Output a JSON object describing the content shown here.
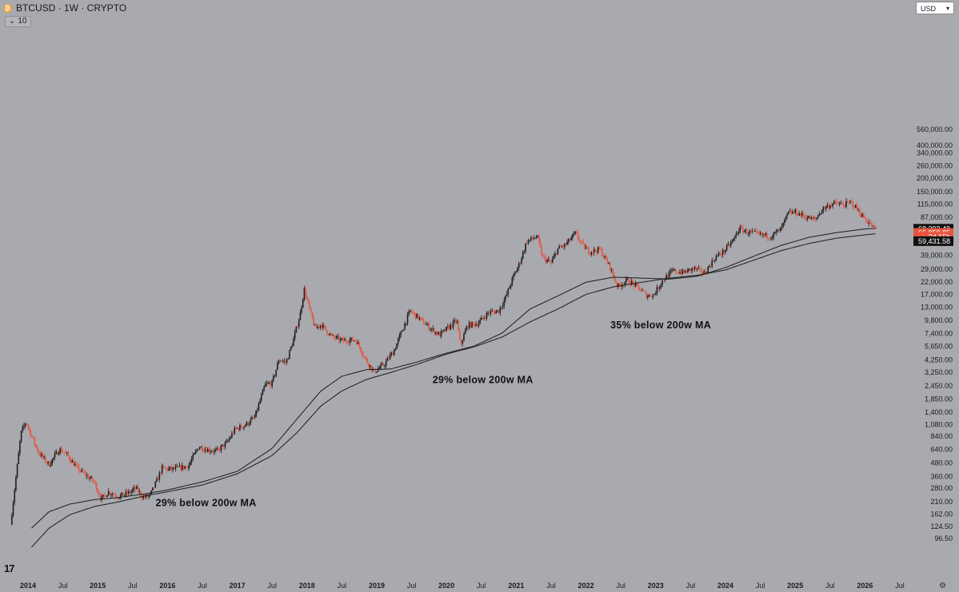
{
  "header": {
    "symbol_title": "BTCUSD · 1W · CRYPTO",
    "logo_glyph": "₿",
    "interval_value": "10",
    "currency": "USD"
  },
  "chart_data": {
    "type": "candlestick",
    "scale": "log",
    "ylim": [
      80,
      520000
    ],
    "xlim": [
      "2014-01-01",
      "2026-09-01"
    ],
    "y_ticks": [
      "560,000.00",
      "400,000.00",
      "340,000.00",
      "260,000.00",
      "200,000.00",
      "150,000.00",
      "115,000.00",
      "87,000.00",
      "67,000.00",
      "39,000.00",
      "29,000.00",
      "22,000.00",
      "17,000.00",
      "13,000.00",
      "9,800.00",
      "7,400.00",
      "5,650.00",
      "4,250.00",
      "3,250.00",
      "2,450.00",
      "1,850.00",
      "1,400.00",
      "1,080.00",
      "840.00",
      "640.00",
      "480.00",
      "360.00",
      "280.00",
      "210.00",
      "162.00",
      "124.50",
      "96.50"
    ],
    "x_ticks": [
      {
        "label": "2014",
        "year": true
      },
      {
        "label": "Jul",
        "year": false
      },
      {
        "label": "2015",
        "year": true
      },
      {
        "label": "Jul",
        "year": false
      },
      {
        "label": "2016",
        "year": true
      },
      {
        "label": "Jul",
        "year": false
      },
      {
        "label": "2017",
        "year": true
      },
      {
        "label": "Jul",
        "year": false
      },
      {
        "label": "2018",
        "year": true
      },
      {
        "label": "Jul",
        "year": false
      },
      {
        "label": "2019",
        "year": true
      },
      {
        "label": "Jul",
        "year": false
      },
      {
        "label": "2020",
        "year": true
      },
      {
        "label": "Jul",
        "year": false
      },
      {
        "label": "2021",
        "year": true
      },
      {
        "label": "Jul",
        "year": false
      },
      {
        "label": "2022",
        "year": true
      },
      {
        "label": "Jul",
        "year": false
      },
      {
        "label": "2023",
        "year": true
      },
      {
        "label": "Jul",
        "year": false
      },
      {
        "label": "2024",
        "year": true
      },
      {
        "label": "Jul",
        "year": false
      },
      {
        "label": "2025",
        "year": true
      },
      {
        "label": "Jul",
        "year": false
      },
      {
        "label": "2026",
        "year": true
      },
      {
        "label": "Jul",
        "year": false
      }
    ],
    "price_path": [
      [
        2013.75,
        130
      ],
      [
        2013.9,
        900
      ],
      [
        2013.97,
        1150
      ],
      [
        2014.05,
        850
      ],
      [
        2014.15,
        600
      ],
      [
        2014.3,
        460
      ],
      [
        2014.45,
        640
      ],
      [
        2014.55,
        580
      ],
      [
        2014.7,
        430
      ],
      [
        2014.85,
        360
      ],
      [
        2014.95,
        320
      ],
      [
        2015.05,
        220
      ],
      [
        2015.15,
        260
      ],
      [
        2015.3,
        235
      ],
      [
        2015.45,
        255
      ],
      [
        2015.55,
        280
      ],
      [
        2015.65,
        230
      ],
      [
        2015.75,
        240
      ],
      [
        2015.85,
        330
      ],
      [
        2015.92,
        430
      ],
      [
        2016.0,
        420
      ],
      [
        2016.1,
        420
      ],
      [
        2016.3,
        450
      ],
      [
        2016.45,
        680
      ],
      [
        2016.55,
        640
      ],
      [
        2016.7,
        610
      ],
      [
        2016.85,
        730
      ],
      [
        2016.97,
        980
      ],
      [
        2017.1,
        1050
      ],
      [
        2017.25,
        1250
      ],
      [
        2017.4,
        2500
      ],
      [
        2017.5,
        2600
      ],
      [
        2017.6,
        4300
      ],
      [
        2017.7,
        4000
      ],
      [
        2017.8,
        6300
      ],
      [
        2017.9,
        11000
      ],
      [
        2017.96,
        19000
      ],
      [
        2018.05,
        11500
      ],
      [
        2018.12,
        8200
      ],
      [
        2018.2,
        9000
      ],
      [
        2018.35,
        7000
      ],
      [
        2018.5,
        6400
      ],
      [
        2018.7,
        6500
      ],
      [
        2018.85,
        4200
      ],
      [
        2018.96,
        3300
      ],
      [
        2019.1,
        3800
      ],
      [
        2019.25,
        5200
      ],
      [
        2019.4,
        9000
      ],
      [
        2019.48,
        12000
      ],
      [
        2019.6,
        10300
      ],
      [
        2019.75,
        8500
      ],
      [
        2019.9,
        7200
      ],
      [
        2020.05,
        8600
      ],
      [
        2020.15,
        9800
      ],
      [
        2020.2,
        5800
      ],
      [
        2020.3,
        8800
      ],
      [
        2020.45,
        9200
      ],
      [
        2020.6,
        11500
      ],
      [
        2020.75,
        12000
      ],
      [
        2020.85,
        16000
      ],
      [
        2020.95,
        24000
      ],
      [
        2021.05,
        33000
      ],
      [
        2021.15,
        52000
      ],
      [
        2021.3,
        58000
      ],
      [
        2021.38,
        37000
      ],
      [
        2021.5,
        33000
      ],
      [
        2021.6,
        45000
      ],
      [
        2021.7,
        48000
      ],
      [
        2021.85,
        62000
      ],
      [
        2021.95,
        48000
      ],
      [
        2022.05,
        42000
      ],
      [
        2022.2,
        44000
      ],
      [
        2022.35,
        30000
      ],
      [
        2022.45,
        20000
      ],
      [
        2022.6,
        23000
      ],
      [
        2022.75,
        19500
      ],
      [
        2022.88,
        16500
      ],
      [
        2022.97,
        16800
      ],
      [
        2023.1,
        23000
      ],
      [
        2023.25,
        28000
      ],
      [
        2023.4,
        27000
      ],
      [
        2023.55,
        29500
      ],
      [
        2023.7,
        26500
      ],
      [
        2023.85,
        37000
      ],
      [
        2023.97,
        42000
      ],
      [
        2024.1,
        52000
      ],
      [
        2024.2,
        69000
      ],
      [
        2024.3,
        64000
      ],
      [
        2024.5,
        60000
      ],
      [
        2024.65,
        58000
      ],
      [
        2024.8,
        68000
      ],
      [
        2024.9,
        95000
      ],
      [
        2025.0,
        97000
      ],
      [
        2025.15,
        88000
      ],
      [
        2025.28,
        82000
      ],
      [
        2025.4,
        105000
      ],
      [
        2025.55,
        117000
      ],
      [
        2025.7,
        113000
      ],
      [
        2025.8,
        120000
      ],
      [
        2025.88,
        105000
      ],
      [
        2025.97,
        88000
      ],
      [
        2026.08,
        75000
      ],
      [
        2026.12,
        70000
      ],
      [
        2026.16,
        68300
      ]
    ],
    "ma_long_path": [
      [
        2014.05,
        80
      ],
      [
        2014.3,
        120
      ],
      [
        2014.6,
        160
      ],
      [
        2014.95,
        190
      ],
      [
        2015.3,
        210
      ],
      [
        2015.7,
        240
      ],
      [
        2016.0,
        260
      ],
      [
        2016.5,
        300
      ],
      [
        2017.0,
        380
      ],
      [
        2017.5,
        560
      ],
      [
        2017.85,
        900
      ],
      [
        2018.2,
        1600
      ],
      [
        2018.5,
        2200
      ],
      [
        2018.85,
        2800
      ],
      [
        2019.2,
        3250
      ],
      [
        2019.6,
        3900
      ],
      [
        2020.0,
        4800
      ],
      [
        2020.4,
        5600
      ],
      [
        2020.8,
        6900
      ],
      [
        2021.2,
        9500
      ],
      [
        2021.6,
        12500
      ],
      [
        2022.0,
        17000
      ],
      [
        2022.4,
        20000
      ],
      [
        2022.8,
        22000
      ],
      [
        2023.2,
        24000
      ],
      [
        2023.6,
        25500
      ],
      [
        2024.0,
        28500
      ],
      [
        2024.4,
        35000
      ],
      [
        2024.8,
        43000
      ],
      [
        2025.2,
        50000
      ],
      [
        2025.6,
        56000
      ],
      [
        2026.0,
        60000
      ],
      [
        2026.16,
        61500
      ]
    ],
    "ma_short_path": [
      [
        2014.05,
        120
      ],
      [
        2014.3,
        170
      ],
      [
        2014.6,
        200
      ],
      [
        2014.95,
        220
      ],
      [
        2015.3,
        230
      ],
      [
        2015.7,
        250
      ],
      [
        2016.0,
        270
      ],
      [
        2016.5,
        320
      ],
      [
        2017.0,
        400
      ],
      [
        2017.5,
        650
      ],
      [
        2017.85,
        1200
      ],
      [
        2018.2,
        2200
      ],
      [
        2018.5,
        3000
      ],
      [
        2018.85,
        3450
      ],
      [
        2019.2,
        3500
      ],
      [
        2019.6,
        4100
      ],
      [
        2020.0,
        4900
      ],
      [
        2020.4,
        5700
      ],
      [
        2020.8,
        7500
      ],
      [
        2021.2,
        12500
      ],
      [
        2021.6,
        16500
      ],
      [
        2022.0,
        22000
      ],
      [
        2022.4,
        24500
      ],
      [
        2022.8,
        24000
      ],
      [
        2023.2,
        23500
      ],
      [
        2023.6,
        25000
      ],
      [
        2024.0,
        30000
      ],
      [
        2024.4,
        38000
      ],
      [
        2024.8,
        48000
      ],
      [
        2025.2,
        57000
      ],
      [
        2025.6,
        63000
      ],
      [
        2026.0,
        68000
      ],
      [
        2026.16,
        69000
      ]
    ],
    "annotations": [
      {
        "text": "29% below 200w MA",
        "x": 2015.83,
        "y": 192
      },
      {
        "text": "29% below 200w MA",
        "x": 2019.8,
        "y": 2600
      },
      {
        "text": "35% below 200w MA",
        "x": 2022.35,
        "y": 8300
      }
    ],
    "price_tags": [
      {
        "text": "68,292.48",
        "bg": "#111111",
        "fg": "#ffffff",
        "price": 68292
      },
      {
        "text": "66,859.85",
        "bg": "#e8543f",
        "fg": "#ffffff",
        "price": 62500
      },
      {
        "text": "2d 15h",
        "bg": "#e8543f",
        "fg": "#ffffff",
        "price": 57500
      },
      {
        "text": "59,431.58",
        "bg": "#111111",
        "fg": "#ffffff",
        "price": 52500
      }
    ],
    "colors": {
      "up": "#1e1e1e",
      "down": "#e8543f",
      "ma": "#1b1b1b",
      "background": "#a8aaaf"
    }
  },
  "footer": {
    "tv_logo": "17",
    "settings_icon": "gear"
  }
}
